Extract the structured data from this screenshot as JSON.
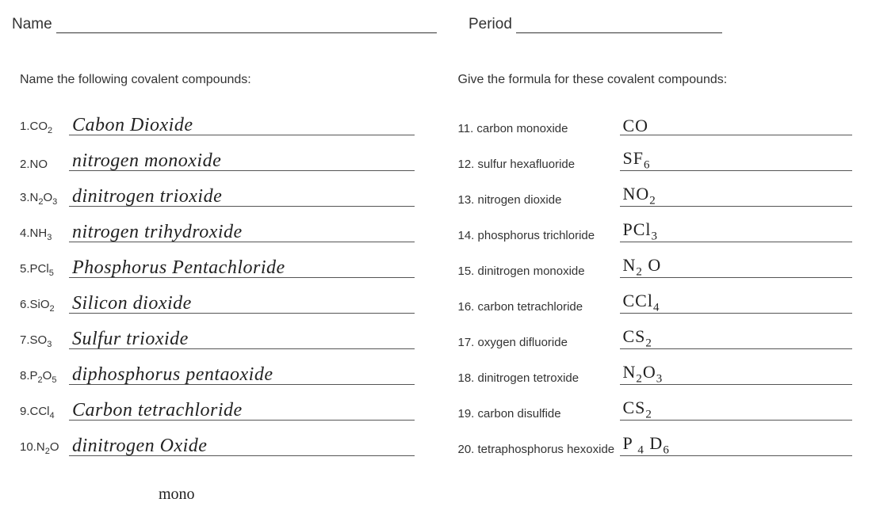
{
  "header": {
    "name_label": "Name",
    "period_label": "Period",
    "name_line_width": 480,
    "period_line_width": 260
  },
  "left": {
    "title": "Name the following covalent compounds:",
    "items": [
      {
        "num": "1.",
        "formula": "CO",
        "sub": "2",
        "answer": "Cabon Dioxide"
      },
      {
        "num": "2.",
        "formula": "NO",
        "sub": "",
        "answer": "nitrogen monoxide"
      },
      {
        "num": "3.",
        "formula": "N",
        "sub": "2",
        "formula2": "O",
        "sub2": "3",
        "answer": "dinitrogen trioxide"
      },
      {
        "num": "4.",
        "formula": "NH",
        "sub": "3",
        "answer": "nitrogen trihydroxide"
      },
      {
        "num": "5.",
        "formula": "PCl",
        "sub": "5",
        "answer": "Phosphorus Pentachloride"
      },
      {
        "num": "6.",
        "formula": "SiO",
        "sub": "2",
        "answer": "Silicon dioxide"
      },
      {
        "num": "7.",
        "formula": "SO",
        "sub": "3",
        "answer": "Sulfur trioxide"
      },
      {
        "num": "8.",
        "formula": "P",
        "sub": "2",
        "formula2": "O",
        "sub2": "5",
        "answer": "diphosphorus pentaoxide"
      },
      {
        "num": "9.",
        "formula": "CCl",
        "sub": "4",
        "answer": "Carbon tetrachloride"
      },
      {
        "num": "10.",
        "formula": "N",
        "sub": "2",
        "formula2": "O",
        "sub2": "",
        "answer": "dinitrogen Oxide"
      }
    ],
    "footnote": "mono"
  },
  "right": {
    "title": "Give the formula for these covalent compounds:",
    "items": [
      {
        "num": "11.",
        "name": "carbon monoxide",
        "answer": "CO"
      },
      {
        "num": "12.",
        "name": "sulfur hexafluoride",
        "answer": "SF",
        "asub": "6"
      },
      {
        "num": "13.",
        "name": "nitrogen dioxide",
        "answer": "NO",
        "asub": "2"
      },
      {
        "num": "14.",
        "name": "phosphorus trichloride",
        "answer": "PCl",
        "asub": "3"
      },
      {
        "num": "15.",
        "name": "dinitrogen monoxide",
        "answer": "N",
        "asub": "2",
        "answer2": " O"
      },
      {
        "num": "16.",
        "name": "carbon tetrachloride",
        "answer": "CCl",
        "asub": "4"
      },
      {
        "num": "17.",
        "name": "oxygen difluoride",
        "answer": "CS",
        "asub": "2"
      },
      {
        "num": "18.",
        "name": "dinitrogen tetroxide",
        "answer": "N",
        "asub": "2",
        "answer2": "O",
        "asub2": "3"
      },
      {
        "num": "19.",
        "name": "carbon disulfide",
        "answer": "CS",
        "asub": "2"
      },
      {
        "num": "20.",
        "name": "tetraphosphorus hexoxide",
        "answer": "P ",
        "asub": "4",
        "answer2": " D",
        "asub2": "6"
      }
    ]
  },
  "colors": {
    "text": "#333333",
    "handwriting": "#222222",
    "line": "#555555",
    "background": "#ffffff"
  }
}
